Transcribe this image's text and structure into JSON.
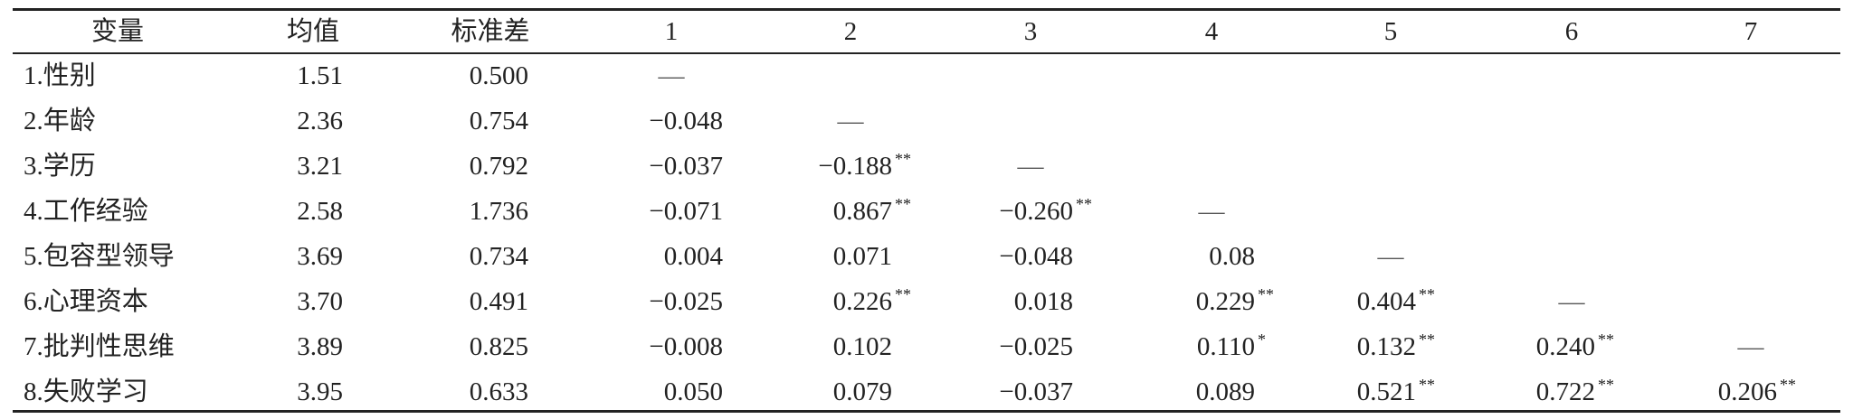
{
  "table": {
    "header": [
      "变量",
      "均值",
      "标准差",
      "1",
      "2",
      "3",
      "4",
      "5",
      "6",
      "7"
    ],
    "rows": [
      [
        "1.性别",
        "1.51",
        "0.500",
        "—"
      ],
      [
        "2.年龄",
        "2.36",
        "0.754",
        "−0.048",
        "—"
      ],
      [
        "3.学历",
        "3.21",
        "0.792",
        "−0.037",
        {
          "value": "−0.188",
          "sig": "**"
        },
        "—"
      ],
      [
        "4.工作经验",
        "2.58",
        "1.736",
        "−0.071",
        {
          "value": "0.867",
          "sig": "**"
        },
        {
          "value": "−0.260",
          "sig": "**"
        },
        "—"
      ],
      [
        "5.包容型领导",
        "3.69",
        "0.734",
        "0.004",
        "0.071",
        "−0.048",
        "0.08",
        "—"
      ],
      [
        "6.心理资本",
        "3.70",
        "0.491",
        "−0.025",
        {
          "value": "0.226",
          "sig": "**"
        },
        "0.018",
        {
          "value": "0.229",
          "sig": "**"
        },
        {
          "value": "0.404",
          "sig": "**"
        },
        "—"
      ],
      [
        "7.批判性思维",
        "3.89",
        "0.825",
        "−0.008",
        "0.102",
        "−0.025",
        {
          "value": "0.110",
          "sig": "*"
        },
        {
          "value": "0.132",
          "sig": "**"
        },
        {
          "value": "0.240",
          "sig": "**"
        },
        "—"
      ],
      [
        "8.失败学习",
        "3.95",
        "0.633",
        "0.050",
        "0.079",
        "−0.037",
        "0.089",
        {
          "value": "0.521",
          "sig": "**"
        },
        {
          "value": "0.722",
          "sig": "**"
        },
        {
          "value": "0.206",
          "sig": "**"
        }
      ]
    ]
  }
}
